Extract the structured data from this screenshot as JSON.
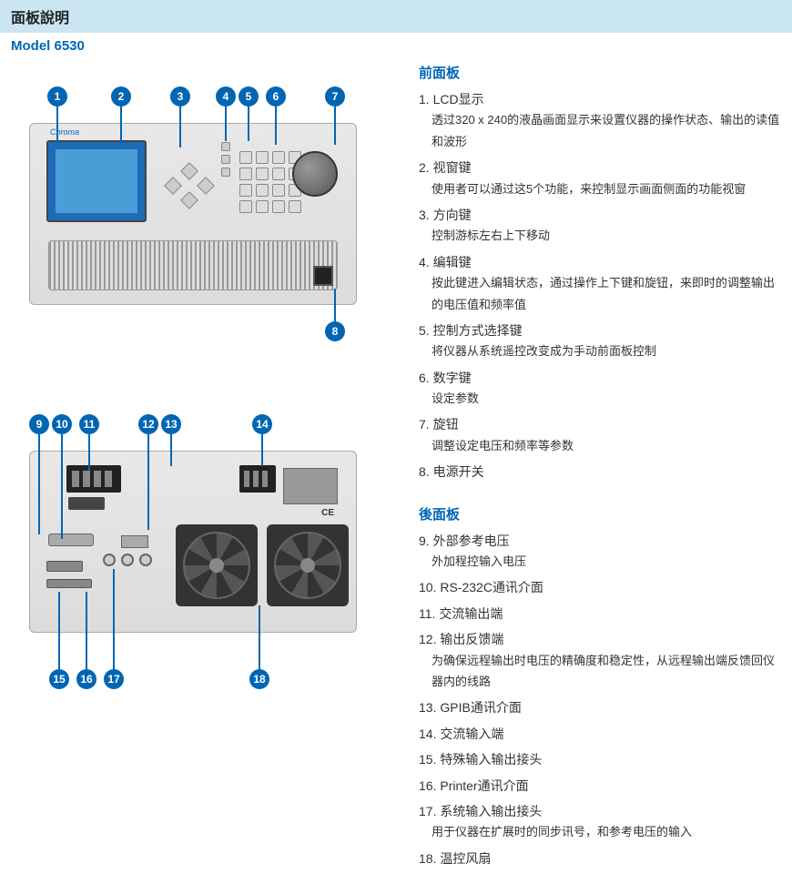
{
  "header": {
    "title": "面板說明"
  },
  "model": "Model 6530",
  "brand_text": "Chroma",
  "ce_text": "CE",
  "front_panel": {
    "title": "前面板",
    "items": [
      {
        "num": "1.",
        "label": "LCD显示",
        "desc": "透过320 x 240的液晶画面显示来设置仪器的操作状态、输出的读值和波形"
      },
      {
        "num": "2.",
        "label": "视窗键",
        "desc": "使用者可以通过这5个功能，来控制显示画面侧面的功能视窗"
      },
      {
        "num": "3.",
        "label": "方向键",
        "desc": "控制游标左右上下移动"
      },
      {
        "num": "4.",
        "label": "编辑键",
        "desc": "按此键进入编辑状态，通过操作上下键和旋钮，来即时的调整输出的电压值和频率值"
      },
      {
        "num": "5.",
        "label": "控制方式选择键",
        "desc": "将仪器从系统遥控改变成为手动前面板控制"
      },
      {
        "num": "6.",
        "label": "数字键",
        "desc": "设定参数"
      },
      {
        "num": "7.",
        "label": "旋钮",
        "desc": "调整设定电压和频率等参数"
      },
      {
        "num": "8.",
        "label": "电源开关",
        "desc": ""
      }
    ]
  },
  "rear_panel": {
    "title": "後面板",
    "items": [
      {
        "num": "9.",
        "label": "外部参考电压",
        "desc": "外加程控输入电压"
      },
      {
        "num": "10.",
        "label": "RS-232C通讯介面",
        "desc": ""
      },
      {
        "num": "11.",
        "label": "交流输出端",
        "desc": ""
      },
      {
        "num": "12.",
        "label": "输出反馈端",
        "desc": "为确保远程输出时电压的精确度和稳定性，从远程输出端反馈回仪器内的线路"
      },
      {
        "num": "13.",
        "label": "GPIB通讯介面",
        "desc": ""
      },
      {
        "num": "14.",
        "label": "交流输入端",
        "desc": ""
      },
      {
        "num": "15.",
        "label": "特殊输入输出接头",
        "desc": ""
      },
      {
        "num": "16.",
        "label": "Printer通讯介面",
        "desc": ""
      },
      {
        "num": "17.",
        "label": "系统输入输出接头",
        "desc": "用于仪器在扩展时的同步讯号，和参考电压的输入"
      },
      {
        "num": "18.",
        "label": "温控风扇",
        "desc": ""
      }
    ]
  },
  "callouts_front": [
    "1",
    "2",
    "3",
    "4",
    "5",
    "6",
    "7",
    "8"
  ],
  "callouts_rear": [
    "9",
    "10",
    "11",
    "12",
    "13",
    "14",
    "15",
    "16",
    "17",
    "18"
  ],
  "colors": {
    "accent": "#0066b3",
    "header_bg": "#c9e6f2",
    "device_bg": "#dcdcdc"
  }
}
